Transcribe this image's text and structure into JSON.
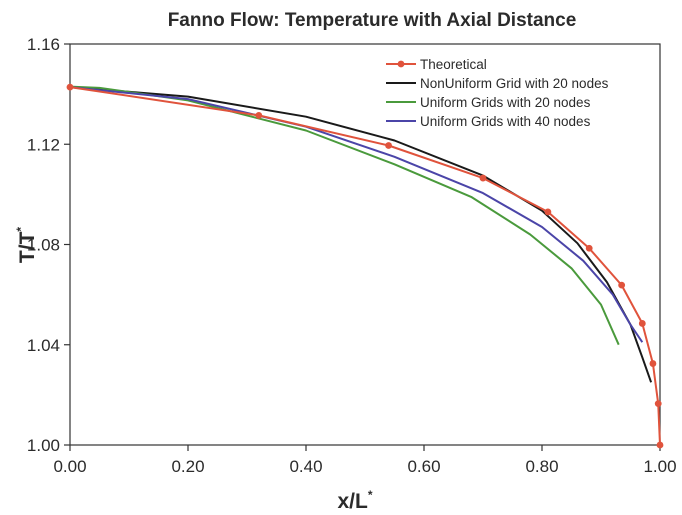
{
  "chart_data": {
    "type": "line",
    "title": "Fanno Flow: Temperature with Axial Distance",
    "xlabel": {
      "base": "x/L",
      "sup": "*"
    },
    "ylabel": {
      "base": "T/T",
      "sup": "*"
    },
    "xlim": [
      0,
      1
    ],
    "ylim": [
      1.0,
      1.16
    ],
    "xticks": [
      "0.00",
      "0.20",
      "0.40",
      "0.60",
      "0.80",
      "1.00"
    ],
    "yticks": [
      "1.00",
      "1.04",
      "1.08",
      "1.12",
      "1.16"
    ],
    "grid": false,
    "legend_position": "top-right",
    "series": [
      {
        "name": "Theoretical",
        "color": "#e0533c",
        "markers": true,
        "points": [
          [
            0.0,
            1.1428
          ],
          [
            0.32,
            1.1315
          ],
          [
            0.54,
            1.1195
          ],
          [
            0.7,
            1.1065
          ],
          [
            0.81,
            1.093
          ],
          [
            0.88,
            1.0785
          ],
          [
            0.935,
            1.0638
          ],
          [
            0.97,
            1.0485
          ],
          [
            0.988,
            1.0325
          ],
          [
            0.997,
            1.0165
          ],
          [
            1.0,
            1.0
          ]
        ]
      },
      {
        "name": "NonUniform Grid with 20 nodes",
        "color": "#1a1a1a",
        "markers": false,
        "points": [
          [
            0.0,
            1.1428
          ],
          [
            0.2,
            1.139
          ],
          [
            0.4,
            1.131
          ],
          [
            0.55,
            1.1215
          ],
          [
            0.7,
            1.1075
          ],
          [
            0.8,
            1.0935
          ],
          [
            0.86,
            1.0805
          ],
          [
            0.91,
            1.065
          ],
          [
            0.95,
            1.048
          ],
          [
            0.97,
            1.035
          ],
          [
            0.985,
            1.025
          ]
        ]
      },
      {
        "name": "Uniform Grids with 20 nodes",
        "color": "#4a9a3c",
        "markers": false,
        "points": [
          [
            0.0,
            1.143
          ],
          [
            0.05,
            1.1425
          ],
          [
            0.2,
            1.1375
          ],
          [
            0.4,
            1.1255
          ],
          [
            0.55,
            1.112
          ],
          [
            0.68,
            1.099
          ],
          [
            0.78,
            1.084
          ],
          [
            0.85,
            1.0705
          ],
          [
            0.9,
            1.056
          ],
          [
            0.93,
            1.04
          ]
        ]
      },
      {
        "name": "Uniform Grids with 40 nodes",
        "color": "#4b45a8",
        "markers": false,
        "points": [
          [
            0.0,
            1.1428
          ],
          [
            0.2,
            1.138
          ],
          [
            0.4,
            1.127
          ],
          [
            0.55,
            1.115
          ],
          [
            0.7,
            1.1005
          ],
          [
            0.8,
            1.087
          ],
          [
            0.87,
            1.0735
          ],
          [
            0.92,
            1.06
          ],
          [
            0.95,
            1.048
          ],
          [
            0.97,
            1.041
          ]
        ]
      }
    ]
  }
}
